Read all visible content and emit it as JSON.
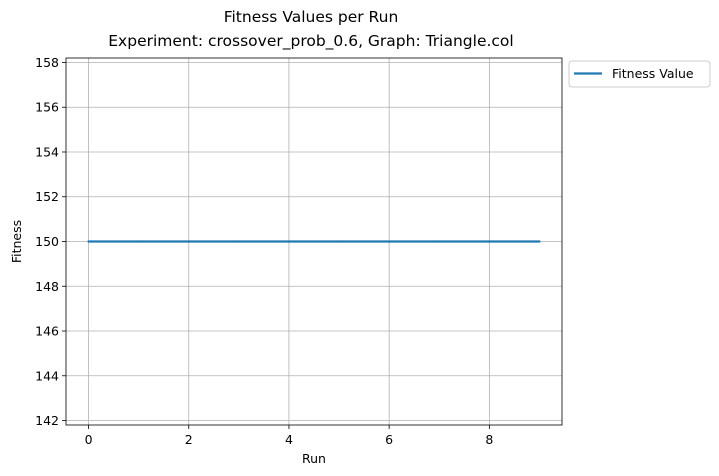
{
  "chart_data": {
    "type": "line",
    "title": "Fitness Values per Run",
    "subtitle": "Experiment: crossover_prob_0.6, Graph: Triangle.col",
    "xlabel": "Run",
    "ylabel": "Fitness",
    "x": [
      0,
      1,
      2,
      3,
      4,
      5,
      6,
      7,
      8,
      9
    ],
    "series": [
      {
        "name": "Fitness Value",
        "values": [
          150,
          150,
          150,
          150,
          150,
          150,
          150,
          150,
          150,
          150
        ],
        "color": "#1f77b4"
      }
    ],
    "xlim": [
      -0.45,
      9.45
    ],
    "ylim": [
      141.8,
      158.2
    ],
    "xticks": [
      0,
      2,
      4,
      6,
      8
    ],
    "yticks": [
      142,
      144,
      146,
      148,
      150,
      152,
      154,
      156,
      158
    ],
    "grid": true,
    "grid_color": "#b0b0b0",
    "legend_position": "outside-top-right"
  }
}
